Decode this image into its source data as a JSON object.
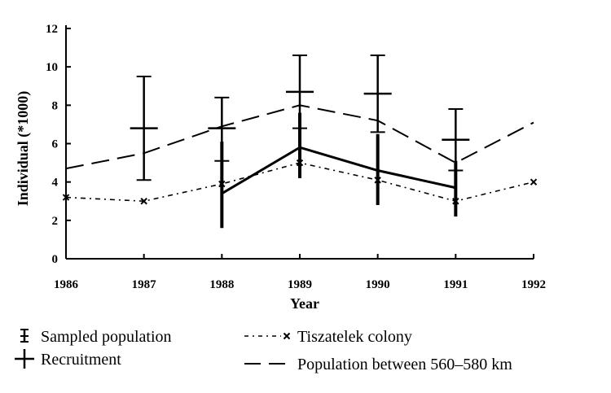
{
  "chart_data": {
    "type": "line",
    "title": "",
    "xlabel": "Year",
    "ylabel": "Individual (*1000)",
    "x_ticks": [
      "1986",
      "1987",
      "1988",
      "1989",
      "1990",
      "1991",
      "1992"
    ],
    "xlim": [
      1986,
      1992
    ],
    "y_ticks": [
      "0",
      "2",
      "4",
      "6",
      "8",
      "10",
      "12"
    ],
    "ylim": [
      0,
      12
    ],
    "grid": false,
    "series": [
      {
        "name": "Sampled population",
        "style": "solid-with-errorbars",
        "points": [
          {
            "x": 1988,
            "y": 3.4,
            "low": 1.6,
            "high": 6.1
          },
          {
            "x": 1989,
            "y": 5.8,
            "low": 4.2,
            "high": 7.6
          },
          {
            "x": 1990,
            "y": 4.6,
            "low": 2.8,
            "high": 6.5
          },
          {
            "x": 1991,
            "y": 3.7,
            "low": 2.2,
            "high": 5.1
          }
        ]
      },
      {
        "name": "Recruitment",
        "style": "cross-with-range",
        "points": [
          {
            "x": 1987,
            "y": 6.8,
            "low": 4.1,
            "high": 9.5
          },
          {
            "x": 1988,
            "y": 6.8,
            "low": 5.1,
            "high": 8.4
          },
          {
            "x": 1989,
            "y": 8.7,
            "low": 6.8,
            "high": 10.6
          },
          {
            "x": 1990,
            "y": 8.6,
            "low": 6.6,
            "high": 10.6
          },
          {
            "x": 1991,
            "y": 6.2,
            "low": 4.6,
            "high": 7.8
          }
        ]
      },
      {
        "name": "Tiszatelek colony",
        "style": "dash-dot-x",
        "points": [
          {
            "x": 1986,
            "y": 3.2
          },
          {
            "x": 1987,
            "y": 3.0
          },
          {
            "x": 1988,
            "y": 3.9
          },
          {
            "x": 1989,
            "y": 5.0
          },
          {
            "x": 1990,
            "y": 4.1
          },
          {
            "x": 1991,
            "y": 3.0
          },
          {
            "x": 1992,
            "y": 4.0
          }
        ]
      },
      {
        "name": "Population between 560–580 km",
        "style": "long-dash",
        "points": [
          {
            "x": 1986,
            "y": 4.7
          },
          {
            "x": 1987,
            "y": 5.5
          },
          {
            "x": 1988,
            "y": 6.9
          },
          {
            "x": 1989,
            "y": 8.0
          },
          {
            "x": 1990,
            "y": 7.2
          },
          {
            "x": 1991,
            "y": 5.0
          },
          {
            "x": 1992,
            "y": 7.1
          }
        ]
      }
    ],
    "legend": {
      "placement": "bottom",
      "items": [
        {
          "symbol": "sampled",
          "label": "Sampled population"
        },
        {
          "symbol": "recruit",
          "label": "Recruitment"
        },
        {
          "symbol": "tisza",
          "label": "Tiszatelek colony"
        },
        {
          "symbol": "dash",
          "label": "Population between 560–580 km"
        }
      ]
    }
  }
}
